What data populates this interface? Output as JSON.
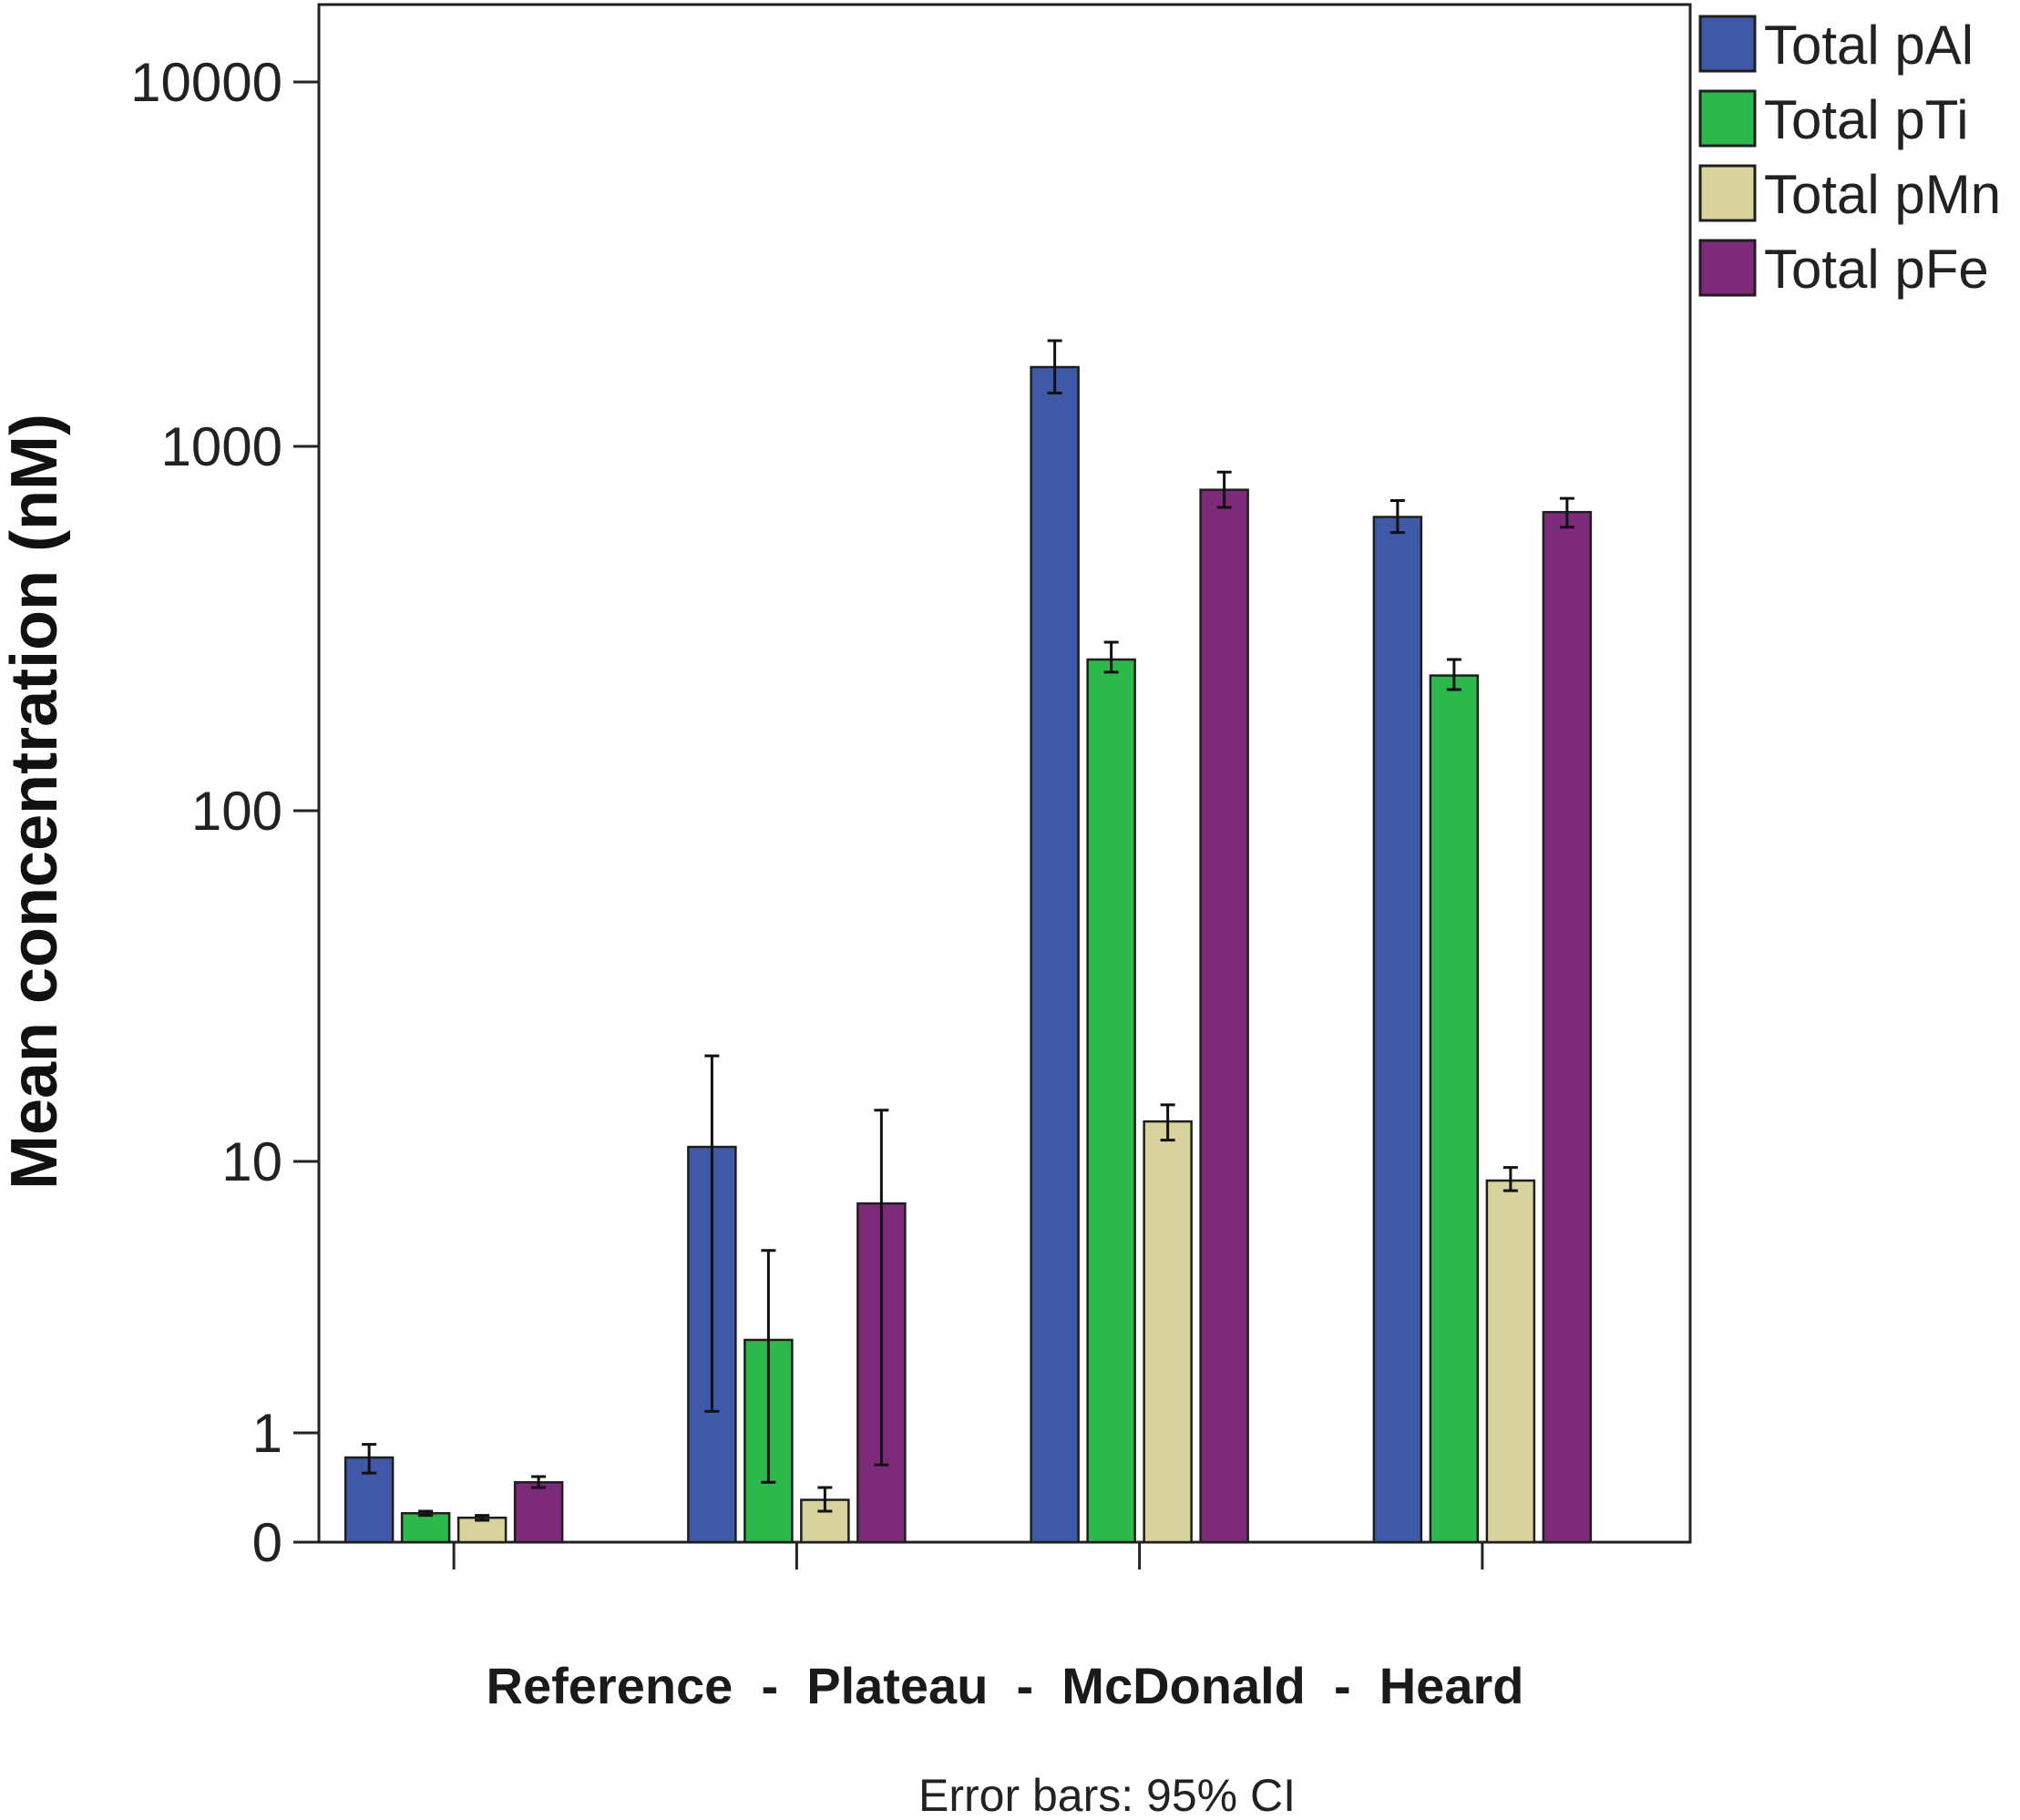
{
  "chart_data": {
    "type": "bar",
    "y_scale": "log",
    "ylabel": "Mean concentration (nM)",
    "xlabel": "Reference  -  Plateau  -  McDonald  -  Heard",
    "note": "Error bars: 95% CI",
    "categories": [
      "Reference",
      "Plateau",
      "McDonald",
      "Heard"
    ],
    "y_ticks": [
      {
        "value": 10000,
        "label": "10000"
      },
      {
        "value": 1000,
        "label": "1000"
      },
      {
        "value": 100,
        "label": "100"
      },
      {
        "value": 10,
        "label": "10"
      },
      {
        "value": 1,
        "label": "1"
      },
      {
        "value": 0,
        "label": "0"
      }
    ],
    "grid": false,
    "legend_position": "top-right",
    "error_bars": "95% CI",
    "series": [
      {
        "name": "Total pAl",
        "color": "#3f58a8",
        "values": [
          0.6,
          11,
          1650,
          640
        ],
        "ci_low": [
          0.4,
          1.2,
          1400,
          580
        ],
        "ci_high": [
          0.8,
          20,
          1950,
          710
        ]
      },
      {
        "name": "Total pTi",
        "color": "#2db84b",
        "values": [
          0.07,
          2.2,
          260,
          235
        ],
        "ci_low": [
          0.06,
          0.3,
          240,
          215
        ],
        "ci_high": [
          0.08,
          4.7,
          290,
          260
        ]
      },
      {
        "name": "Total pMn",
        "color": "#d8d29c",
        "values": [
          0.05,
          0.15,
          13,
          8.5
        ],
        "ci_low": [
          0.04,
          0.08,
          11.5,
          7.8
        ],
        "ci_high": [
          0.06,
          0.25,
          14.5,
          9.5
        ]
      },
      {
        "name": "Total pFe",
        "color": "#7d2a7b",
        "values": [
          0.3,
          7,
          760,
          660
        ],
        "ci_low": [
          0.25,
          0.5,
          680,
          600
        ],
        "ci_high": [
          0.36,
          14,
          850,
          720
        ]
      }
    ]
  }
}
